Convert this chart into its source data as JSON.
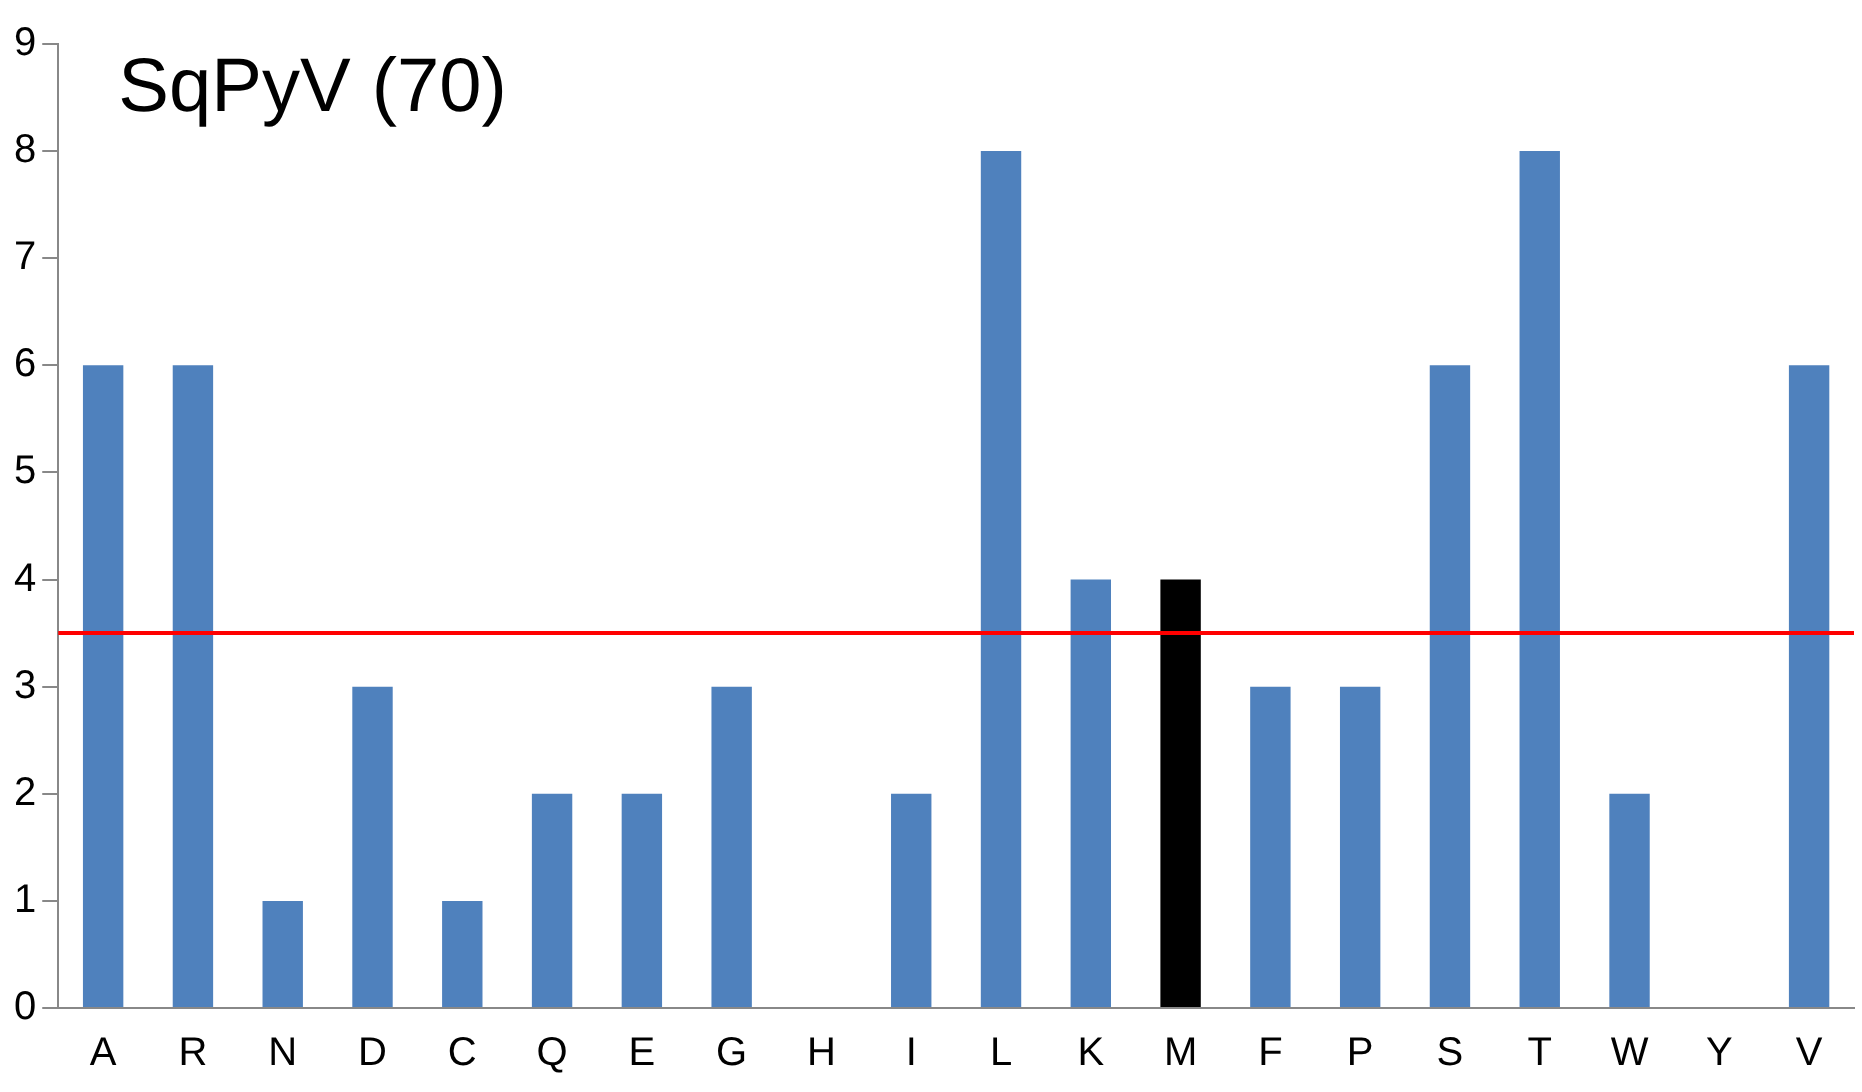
{
  "chart_data": {
    "type": "bar",
    "title": "SqPyV (70)",
    "categories": [
      "A",
      "R",
      "N",
      "D",
      "C",
      "Q",
      "E",
      "G",
      "H",
      "I",
      "L",
      "K",
      "M",
      "F",
      "P",
      "S",
      "T",
      "W",
      "Y",
      "V"
    ],
    "values": [
      6,
      6,
      1,
      3,
      1,
      2,
      2,
      3,
      0,
      2,
      8,
      4,
      4,
      3,
      3,
      6,
      8,
      2,
      0,
      6
    ],
    "colors": [
      "#4f81bd",
      "#4f81bd",
      "#4f81bd",
      "#4f81bd",
      "#4f81bd",
      "#4f81bd",
      "#4f81bd",
      "#4f81bd",
      "#4f81bd",
      "#4f81bd",
      "#4f81bd",
      "#4f81bd",
      "#000000",
      "#4f81bd",
      "#4f81bd",
      "#4f81bd",
      "#4f81bd",
      "#4f81bd",
      "#4f81bd",
      "#4f81bd"
    ],
    "ylim": [
      0,
      9
    ],
    "yticks": [
      0,
      1,
      2,
      3,
      4,
      5,
      6,
      7,
      8,
      9
    ],
    "grid": false,
    "legend": false,
    "ref_lines": [
      {
        "axis": "y",
        "value": 3.5,
        "color": "#ff0000"
      }
    ]
  }
}
